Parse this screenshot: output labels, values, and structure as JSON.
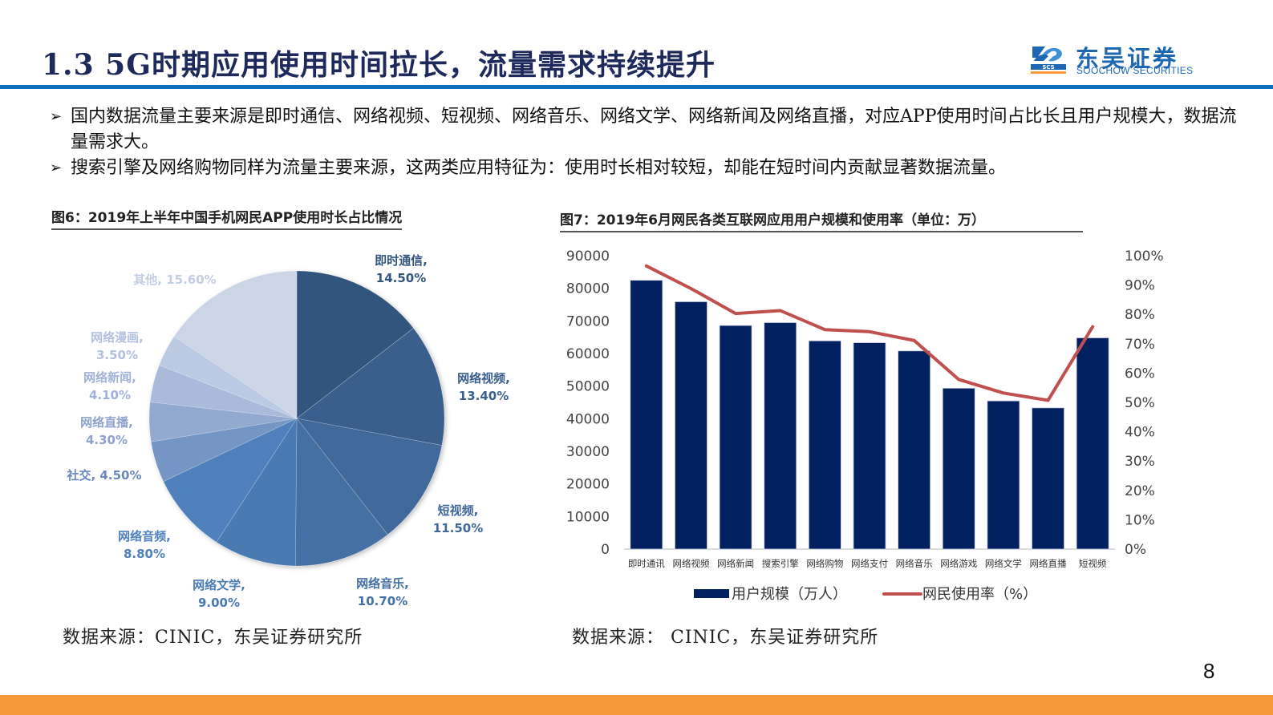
{
  "header": {
    "title": "1.3 5G时期应用使用时间拉长，流量需求持续提升",
    "logo_cn": "东吴证券",
    "logo_en": "SOOCHOW SECURITIES",
    "logo_mark_text": "SCS"
  },
  "bullets": [
    {
      "marker": "➢",
      "text": "国内数据流量主要来源是即时通信、网络视频、短视频、网络音乐、网络文学、网络新闻及网络直播，对应APP使用时间占比长且用户规模大，数据流量需求大。"
    },
    {
      "marker": "➢",
      "text": "搜索引擎及网络购物同样为流量主要来源，这两类应用特征为：使用时长相对较短，却能在短时间内贡献显著数据流量。"
    }
  ],
  "figure6": {
    "title": "图6：2019年上半年中国手机网民APP使用时长占比情况",
    "source": "数据来源：CINIC，东吴证券研究所"
  },
  "figure7": {
    "title": "图7：2019年6月网民各类互联网应用用户规模和使用率（单位：万）",
    "source": "数据来源：  CINIC，东吴证券研究所",
    "legend": {
      "bar": "用户规模（万人）",
      "line": "网民使用率（%）"
    }
  },
  "page_number": "8",
  "colors": {
    "title": "#1f2a5c",
    "rule": "#0f6fba",
    "bar": "#002060",
    "line": "#c0504d",
    "footer": "#f7993a"
  },
  "chart_data": [
    {
      "type": "pie",
      "title": "图6：2019年上半年中国手机网民APP使用时长占比情况",
      "labels": [
        "即时通信",
        "网络视频",
        "短视频",
        "网络音乐",
        "网络文学",
        "网络音频",
        "社交",
        "网络直播",
        "网络新闻",
        "网络漫画",
        "其他"
      ],
      "values": [
        14.5,
        13.4,
        11.5,
        10.7,
        9.0,
        8.8,
        4.5,
        4.3,
        4.1,
        3.5,
        15.6
      ],
      "display": [
        "14.50%",
        "13.40%",
        "11.50%",
        "10.70%",
        "9.00%",
        "8.80%",
        "4.50%",
        "4.30%",
        "4.10%",
        "3.50%",
        "15.60%"
      ],
      "colors": [
        "#32557e",
        "#3a5f8d",
        "#3f6899",
        "#4470a4",
        "#4a7ab2",
        "#4f80bb",
        "#7595c4",
        "#93a9d0",
        "#a9badb",
        "#bcc9e2",
        "#cbd5e6"
      ],
      "label_colors": [
        "#32557e",
        "#3a5f8d",
        "#3f6899",
        "#4470a4",
        "#4a7ab2",
        "#4f80bb",
        "#6a88bd",
        "#8ea3cc",
        "#a0b3d7",
        "#b3c1de",
        "#c3cee3"
      ],
      "start_angle_deg": 0,
      "direction": "clockwise"
    },
    {
      "type": "bar+line",
      "title": "图7：2019年6月网民各类互联网应用用户规模和使用率（单位：万）",
      "categories": [
        "即时通讯",
        "网络视频",
        "网络新闻",
        "搜索引擎",
        "网络购物",
        "网络支付",
        "网络音乐",
        "网络游戏",
        "网络文学",
        "网络直播",
        "短视频"
      ],
      "series": [
        {
          "name": "用户规模（万人）",
          "type": "bar",
          "axis": "left",
          "values": [
            82470,
            75877,
            68587,
            69470,
            63882,
            63305,
            60789,
            49356,
            45454,
            43322,
            64798
          ]
        },
        {
          "name": "网民使用率（%）",
          "type": "line",
          "axis": "right",
          "values": [
            96.5,
            88.8,
            80.3,
            81.3,
            74.8,
            74.1,
            71.1,
            57.8,
            53.2,
            50.7,
            75.8
          ]
        }
      ],
      "y_left": {
        "min": 0,
        "max": 90000,
        "ticks": [
          "90000",
          "80000",
          "70000",
          "60000",
          "50000",
          "40000",
          "30000",
          "20000",
          "10000",
          "0"
        ]
      },
      "y_right": {
        "min": 0,
        "max": 100,
        "ticks": [
          "100%",
          "90%",
          "80%",
          "70%",
          "60%",
          "50%",
          "40%",
          "30%",
          "20%",
          "10%",
          "0%"
        ]
      },
      "legend_position": "bottom",
      "grid": false
    }
  ]
}
